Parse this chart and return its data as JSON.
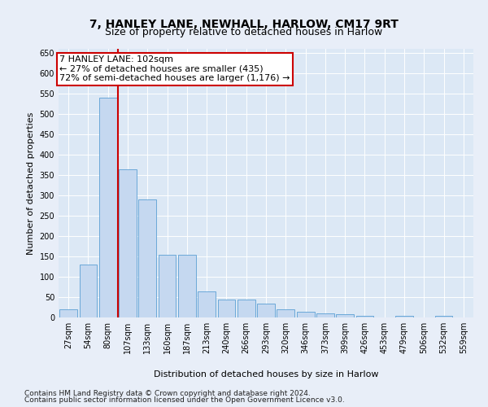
{
  "title": "7, HANLEY LANE, NEWHALL, HARLOW, CM17 9RT",
  "subtitle": "Size of property relative to detached houses in Harlow",
  "xlabel": "Distribution of detached houses by size in Harlow",
  "ylabel": "Number of detached properties",
  "categories": [
    "27sqm",
    "54sqm",
    "80sqm",
    "107sqm",
    "133sqm",
    "160sqm",
    "187sqm",
    "213sqm",
    "240sqm",
    "266sqm",
    "293sqm",
    "320sqm",
    "346sqm",
    "373sqm",
    "399sqm",
    "426sqm",
    "453sqm",
    "479sqm",
    "506sqm",
    "532sqm",
    "559sqm"
  ],
  "values": [
    20,
    130,
    540,
    365,
    290,
    155,
    155,
    65,
    45,
    45,
    35,
    20,
    15,
    10,
    8,
    4,
    0,
    4,
    0,
    4,
    0
  ],
  "bar_color": "#c5d8f0",
  "bar_edge_color": "#5a9fd4",
  "annotation_line1": "7 HANLEY LANE: 102sqm",
  "annotation_line2": "← 27% of detached houses are smaller (435)",
  "annotation_line3": "72% of semi-detached houses are larger (1,176) →",
  "annotation_box_color": "#ffffff",
  "annotation_box_edge": "#cc0000",
  "vline_color": "#cc0000",
  "fig_bg_color": "#e8eef8",
  "plot_bg": "#dce8f5",
  "ylim": [
    0,
    660
  ],
  "yticks": [
    0,
    50,
    100,
    150,
    200,
    250,
    300,
    350,
    400,
    450,
    500,
    550,
    600,
    650
  ],
  "vline_x_index": 2.5,
  "footer1": "Contains HM Land Registry data © Crown copyright and database right 2024.",
  "footer2": "Contains public sector information licensed under the Open Government Licence v3.0.",
  "title_fontsize": 10,
  "subtitle_fontsize": 9,
  "axis_label_fontsize": 8,
  "tick_fontsize": 7,
  "annotation_fontsize": 8,
  "footer_fontsize": 6.5
}
